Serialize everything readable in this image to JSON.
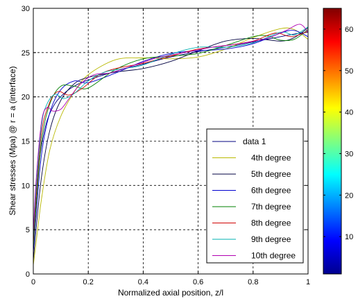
{
  "chart_data": {
    "type": "line",
    "xlabel": "Normalized axial position, z/l",
    "ylabel": "Shear stresses (Mpa) @ r = a (interface)",
    "xlim": [
      0,
      1
    ],
    "ylim": [
      0,
      30
    ],
    "xticks": [
      0,
      0.2,
      0.4,
      0.6,
      0.8,
      1
    ],
    "xtick_labels": [
      "0",
      "0.2",
      "0.4",
      "0.6",
      "0.8",
      "1"
    ],
    "yticks": [
      0,
      5,
      10,
      15,
      20,
      25,
      30
    ],
    "ytick_labels": [
      "0",
      "5",
      "10",
      "15",
      "20",
      "25",
      "30"
    ],
    "grid": true,
    "legend_position": "lower-right",
    "series": [
      {
        "name": "data 1",
        "color": "#000080",
        "x": [
          0,
          0.005,
          0.01,
          0.02,
          0.03,
          0.05,
          0.08,
          0.12,
          0.16,
          0.2,
          0.3,
          0.4,
          0.5,
          0.6,
          0.7,
          0.8,
          0.9,
          0.95,
          1.0
        ],
        "y": [
          2.5,
          5.5,
          8.5,
          12.0,
          14.5,
          17.3,
          19.3,
          20.6,
          21.4,
          21.9,
          22.9,
          23.7,
          24.5,
          25.1,
          25.6,
          26.2,
          26.8,
          27.1,
          27.3
        ]
      },
      {
        "name": "4th degree",
        "color": "#b8b800",
        "x": [
          0,
          0.01,
          0.03,
          0.06,
          0.1,
          0.15,
          0.2,
          0.3,
          0.4,
          0.5,
          0.6,
          0.7,
          0.8,
          0.9,
          0.95,
          1.0
        ],
        "y": [
          1.0,
          3.5,
          8.5,
          14.0,
          17.8,
          20.6,
          22.5,
          24.2,
          24.4,
          24.3,
          24.5,
          25.4,
          26.7,
          27.7,
          27.6,
          26.5
        ]
      },
      {
        "name": "5th degree",
        "color": "#000040",
        "x": [
          0,
          0.01,
          0.03,
          0.06,
          0.1,
          0.15,
          0.2,
          0.3,
          0.4,
          0.5,
          0.6,
          0.7,
          0.8,
          0.9,
          0.95,
          1.0
        ],
        "y": [
          1.5,
          5.0,
          11.0,
          16.2,
          19.6,
          21.5,
          22.2,
          22.8,
          23.2,
          24.0,
          25.2,
          26.3,
          26.6,
          26.3,
          26.7,
          27.8
        ]
      },
      {
        "name": "6th degree",
        "color": "#0000d0",
        "x": [
          0,
          0.01,
          0.03,
          0.06,
          0.1,
          0.15,
          0.2,
          0.3,
          0.4,
          0.5,
          0.6,
          0.7,
          0.8,
          0.9,
          0.95,
          1.0
        ],
        "y": [
          2.5,
          6.5,
          13.5,
          18.2,
          20.8,
          21.8,
          21.6,
          22.7,
          24.0,
          24.9,
          25.2,
          25.4,
          26.0,
          27.2,
          27.5,
          26.8
        ]
      },
      {
        "name": "7th degree",
        "color": "#008000",
        "x": [
          0,
          0.01,
          0.03,
          0.06,
          0.1,
          0.15,
          0.2,
          0.3,
          0.4,
          0.5,
          0.6,
          0.7,
          0.8,
          0.85,
          0.9,
          0.95,
          1.0
        ],
        "y": [
          3.0,
          7.5,
          15.0,
          19.2,
          21.2,
          21.2,
          21.0,
          23.1,
          24.3,
          24.6,
          24.9,
          25.8,
          26.8,
          26.9,
          26.4,
          26.5,
          27.6
        ]
      },
      {
        "name": "8th degree",
        "color": "#d00000",
        "x": [
          0,
          0.01,
          0.03,
          0.06,
          0.09,
          0.13,
          0.18,
          0.24,
          0.3,
          0.4,
          0.5,
          0.6,
          0.7,
          0.8,
          0.88,
          0.94,
          1.0
        ],
        "y": [
          3.5,
          8.5,
          16.0,
          19.4,
          20.6,
          20.2,
          21.0,
          22.5,
          23.2,
          23.8,
          24.6,
          25.4,
          25.8,
          26.3,
          27.2,
          26.8,
          27.4
        ]
      },
      {
        "name": "9th degree",
        "color": "#00b0b0",
        "x": [
          0,
          0.01,
          0.03,
          0.05,
          0.08,
          0.11,
          0.15,
          0.2,
          0.26,
          0.33,
          0.4,
          0.5,
          0.6,
          0.7,
          0.8,
          0.9,
          0.95,
          1.0
        ],
        "y": [
          4.0,
          9.5,
          16.8,
          19.2,
          20.3,
          19.8,
          20.4,
          21.8,
          22.8,
          23.2,
          23.6,
          24.8,
          25.6,
          25.6,
          26.1,
          27.3,
          27.0,
          27.9
        ]
      },
      {
        "name": "10th degree",
        "color": "#b000b0",
        "x": [
          0,
          0.01,
          0.03,
          0.05,
          0.07,
          0.1,
          0.13,
          0.17,
          0.22,
          0.28,
          0.35,
          0.45,
          0.55,
          0.65,
          0.75,
          0.85,
          0.92,
          0.97,
          1.0
        ],
        "y": [
          4.5,
          10.5,
          17.2,
          18.8,
          18.4,
          18.6,
          19.8,
          21.4,
          22.5,
          22.7,
          23.4,
          24.4,
          25.0,
          25.6,
          26.0,
          26.6,
          27.5,
          28.2,
          27.3
        ]
      }
    ],
    "colorbar": {
      "ticks": [
        10,
        20,
        30,
        40,
        50,
        60
      ],
      "tick_labels": [
        "10",
        "20",
        "30",
        "40",
        "50",
        "60"
      ],
      "range": [
        1,
        65
      ]
    }
  }
}
